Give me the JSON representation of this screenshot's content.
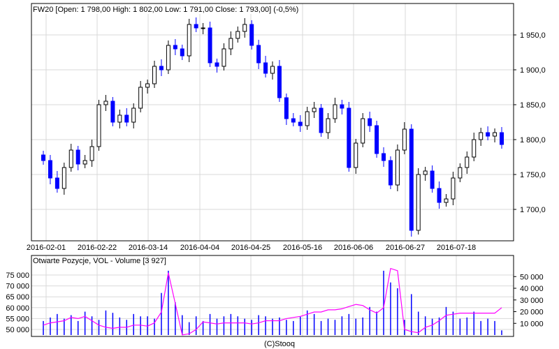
{
  "chart_data": [
    {
      "type": "candlestick",
      "title": "FW20 [Open: 1 798,00  High: 1 802,00  Low: 1 791,00  Close: 1 793,00] (-0,5%)",
      "x_tick_labels": [
        "2016-02-01",
        "2016-02-22",
        "2016-03-14",
        "2016-04-04",
        "2016-04-25",
        "2016-05-16",
        "2016-06-06",
        "2016-06-27",
        "2016-07-18"
      ],
      "y_tick_labels": [
        "1 950,0",
        "1 900,0",
        "1 850,0",
        "1 800,0",
        "1 750,0",
        "1 700,0"
      ],
      "y_ticks": [
        1950,
        1900,
        1850,
        1800,
        1750,
        1700
      ],
      "ylim": [
        1655,
        1995
      ],
      "grid": true,
      "up_color": "#ffffff",
      "down_color": "#0000ff",
      "close": [
        1770,
        1745,
        1730,
        1760,
        1785,
        1765,
        1770,
        1790,
        1850,
        1855,
        1825,
        1835,
        1825,
        1845,
        1875,
        1880,
        1905,
        1900,
        1935,
        1930,
        1920,
        1965,
        1960,
        1960,
        1910,
        1905,
        1930,
        1945,
        1955,
        1965,
        1935,
        1910,
        1895,
        1905,
        1860,
        1830,
        1825,
        1820,
        1840,
        1845,
        1810,
        1830,
        1850,
        1845,
        1760,
        1795,
        1830,
        1820,
        1780,
        1770,
        1735,
        1785,
        1815,
        1670,
        1750,
        1755,
        1730,
        1710,
        1715,
        1745,
        1760,
        1775,
        1800,
        1810,
        1805,
        1810,
        1793
      ]
    },
    {
      "type": "bar+line",
      "title": "Otwarte Pozycje, VOL - Volume [3 927]",
      "footer": "(C)Stooq",
      "left_tick_labels": [
        "75 000",
        "70 000",
        "65 000",
        "60 000",
        "55 000",
        "50 000"
      ],
      "left_ticks": [
        75000,
        70000,
        65000,
        60000,
        55000,
        50000
      ],
      "right_tick_labels": [
        "50 000",
        "40 000",
        "30 000",
        "20 000",
        "10 000"
      ],
      "right_ticks": [
        50000,
        40000,
        30000,
        20000,
        10000
      ],
      "volume_color": "#0000ff",
      "oi_color": "#ff00ff",
      "volume_thousands": [
        12,
        15,
        18,
        14,
        17,
        12,
        20,
        16,
        13,
        21,
        19,
        15,
        13,
        18,
        16,
        16,
        14,
        36,
        55,
        28,
        17,
        11,
        16,
        12,
        18,
        14,
        16,
        18,
        16,
        14,
        13,
        17,
        16,
        14,
        15,
        13,
        12,
        16,
        21,
        18,
        12,
        14,
        13,
        16,
        18,
        14,
        15,
        24,
        20,
        55,
        45,
        40,
        13,
        35,
        20,
        16,
        14,
        15,
        24,
        20,
        14,
        15,
        20,
        12,
        14,
        12,
        4
      ],
      "open_interest_thousands": [
        52,
        53,
        53.5,
        54,
        55.5,
        55,
        56,
        54,
        52,
        51,
        50.5,
        51,
        51,
        52,
        52,
        51.5,
        53,
        58,
        76,
        62,
        47.5,
        48,
        50,
        53.5,
        53,
        52.5,
        53,
        53,
        53,
        53,
        52.5,
        53,
        54,
        54,
        54,
        55,
        55.5,
        56,
        57,
        58,
        58,
        59,
        59,
        59.5,
        60.5,
        61.5,
        61,
        59,
        57.5,
        60,
        78,
        77,
        50,
        49,
        48.5,
        51,
        52,
        54,
        56.5,
        57,
        57.5,
        57.5,
        57.5,
        57.5,
        57.5,
        57.5,
        60
      ]
    }
  ]
}
